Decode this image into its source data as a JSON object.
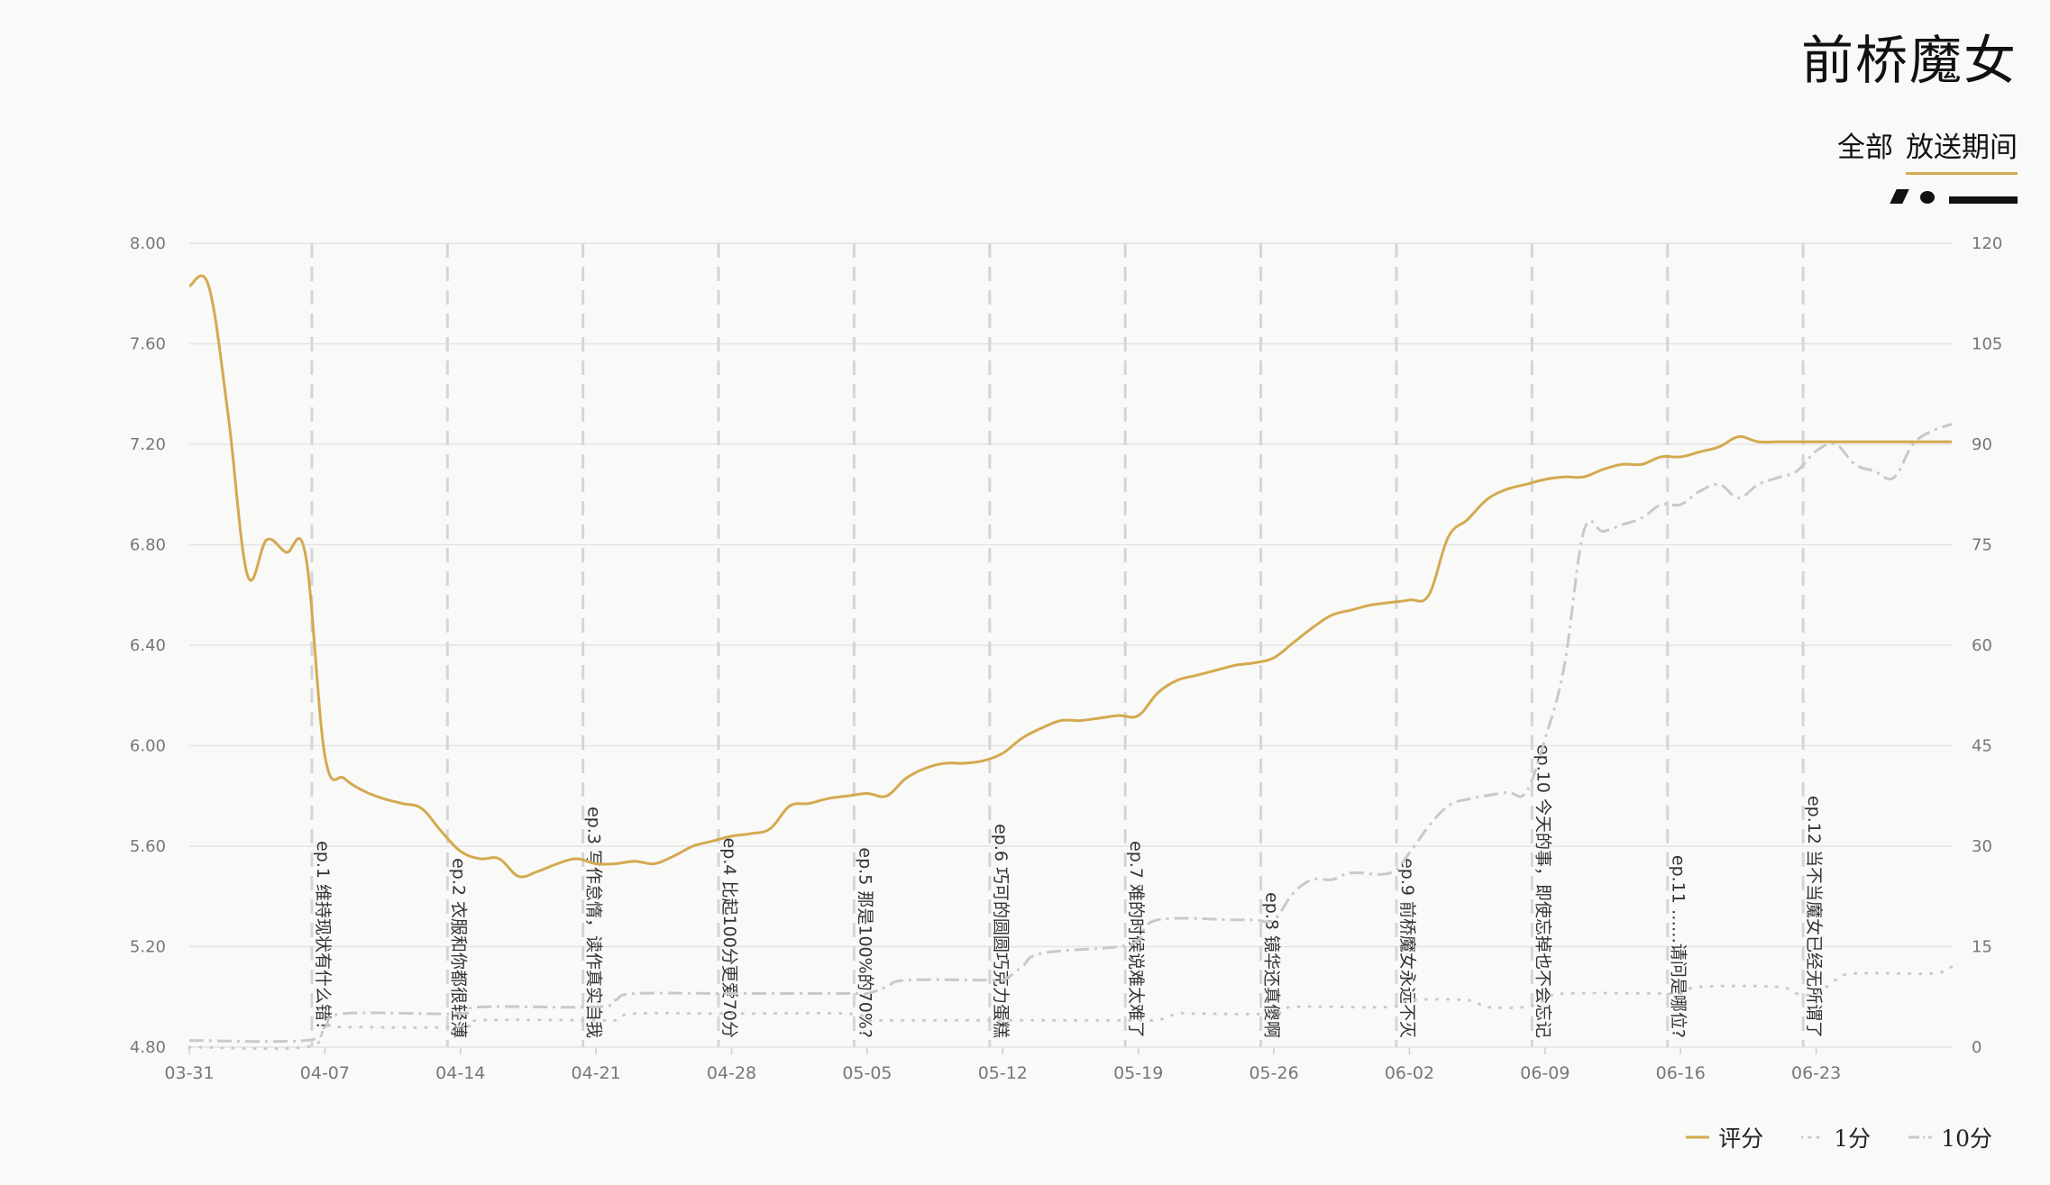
{
  "header": {
    "title": "前桥魔女",
    "tabs": [
      {
        "label": "全部",
        "active": false
      },
      {
        "label": "放送期间",
        "active": true
      }
    ]
  },
  "colors": {
    "score": "#d4a94f",
    "one": "#c9c9c9",
    "ten": "#c9c9c9",
    "grid": "#e4e4e4",
    "episode_line": "#d5d5d5",
    "axis_text": "#777777"
  },
  "legend": [
    {
      "label": "评分",
      "style": "solid"
    },
    {
      "label": "1分",
      "style": "dotted"
    },
    {
      "label": "10分",
      "style": "dashdot"
    }
  ],
  "chart_data": {
    "type": "line",
    "x_ticks": [
      "03-31",
      "04-07",
      "04-14",
      "04-21",
      "04-28",
      "05-05",
      "05-12",
      "05-19",
      "05-26",
      "06-02",
      "06-09",
      "06-16",
      "06-23"
    ],
    "x_range": [
      "03-31",
      "06-30"
    ],
    "y_left": {
      "range": [
        4.8,
        8.0
      ],
      "ticks": [
        "8.00",
        "7.60",
        "7.20",
        "6.80",
        "6.40",
        "6.00",
        "5.60",
        "5.20",
        "4.80"
      ]
    },
    "y_right": {
      "range": [
        0,
        120
      ],
      "ticks": [
        "120",
        "105",
        "90",
        "75",
        "60",
        "45",
        "30",
        "15",
        "0"
      ]
    },
    "episodes": [
      {
        "date": "04-06",
        "label": "ep.1 维持现状有什么错！"
      },
      {
        "date": "04-13",
        "label": "ep.2 衣服和你都很轻薄"
      },
      {
        "date": "04-20",
        "label": "ep.3 写作怠惰，读作真实自我"
      },
      {
        "date": "04-27",
        "label": "ep.4 比起100分更爱70分"
      },
      {
        "date": "05-04",
        "label": "ep.5 那是100%的70%?"
      },
      {
        "date": "05-11",
        "label": "ep.6 巧可的圆圆巧克力蛋糕"
      },
      {
        "date": "05-18",
        "label": "ep.7 难的时候说难太难了"
      },
      {
        "date": "05-25",
        "label": "ep.8 镜华还真傻啊"
      },
      {
        "date": "06-01",
        "label": "ep.9 前桥魔女永远不灭"
      },
      {
        "date": "06-08",
        "label": "ep.10 今天的事，即使忘掉也不会忘记"
      },
      {
        "date": "06-15",
        "label": "ep.11 ……请问是哪位?"
      },
      {
        "date": "06-22",
        "label": "ep.12 当不当魔女已经无所谓了"
      }
    ],
    "series": [
      {
        "name": "评分",
        "axis": "left",
        "style": "solid",
        "x": [
          "03-31",
          "04-01",
          "04-02",
          "04-03",
          "04-04",
          "04-05",
          "04-06",
          "04-07",
          "04-08",
          "04-09",
          "04-10",
          "04-11",
          "04-12",
          "04-13",
          "04-14",
          "04-15",
          "04-16",
          "04-17",
          "04-18",
          "04-19",
          "04-20",
          "04-21",
          "04-22",
          "04-23",
          "04-24",
          "04-25",
          "04-26",
          "04-27",
          "04-28",
          "04-29",
          "04-30",
          "05-01",
          "05-02",
          "05-03",
          "05-04",
          "05-05",
          "05-06",
          "05-07",
          "05-08",
          "05-09",
          "05-10",
          "05-11",
          "05-12",
          "05-13",
          "05-14",
          "05-15",
          "05-16",
          "05-17",
          "05-18",
          "05-19",
          "05-20",
          "05-21",
          "05-22",
          "05-23",
          "05-24",
          "05-25",
          "05-26",
          "05-27",
          "05-28",
          "05-29",
          "05-30",
          "05-31",
          "06-01",
          "06-02",
          "06-03",
          "06-04",
          "06-05",
          "06-06",
          "06-07",
          "06-08",
          "06-09",
          "06-10",
          "06-11",
          "06-12",
          "06-13",
          "06-14",
          "06-15",
          "06-16",
          "06-17",
          "06-18",
          "06-19",
          "06-20",
          "06-21",
          "06-22",
          "06-23",
          "06-24",
          "06-25",
          "06-26",
          "06-27",
          "06-28",
          "06-29",
          "06-30"
        ],
        "y": [
          7.83,
          7.83,
          7.32,
          6.68,
          6.82,
          6.77,
          6.76,
          5.96,
          5.87,
          5.82,
          5.79,
          5.77,
          5.75,
          5.66,
          5.58,
          5.55,
          5.55,
          5.48,
          5.5,
          5.53,
          5.55,
          5.53,
          5.53,
          5.54,
          5.53,
          5.56,
          5.6,
          5.62,
          5.64,
          5.65,
          5.67,
          5.76,
          5.77,
          5.79,
          5.8,
          5.81,
          5.8,
          5.87,
          5.91,
          5.93,
          5.93,
          5.94,
          5.97,
          6.03,
          6.07,
          6.1,
          6.1,
          6.11,
          6.12,
          6.12,
          6.21,
          6.26,
          6.28,
          6.3,
          6.32,
          6.33,
          6.35,
          6.41,
          6.47,
          6.52,
          6.54,
          6.56,
          6.57,
          6.58,
          6.6,
          6.83,
          6.9,
          6.98,
          7.02,
          7.04,
          7.06,
          7.07,
          7.07,
          7.1,
          7.12,
          7.12,
          7.15,
          7.15,
          7.17,
          7.19,
          7.23,
          7.21,
          7.21,
          7.21,
          7.21,
          7.21,
          7.21,
          7.21,
          7.21,
          7.21,
          7.21,
          7.21
        ]
      },
      {
        "name": "1分",
        "axis": "right",
        "style": "dotted",
        "x": [
          "03-31",
          "04-06",
          "04-07",
          "04-08",
          "04-14",
          "04-15",
          "04-21",
          "04-22",
          "04-23",
          "04-28",
          "05-04",
          "05-05",
          "05-06",
          "05-07",
          "05-13",
          "05-19",
          "05-20",
          "05-21",
          "05-22",
          "05-26",
          "05-27",
          "06-01",
          "06-02",
          "06-05",
          "06-06",
          "06-08",
          "06-09",
          "06-10",
          "06-15",
          "06-16",
          "06-17",
          "06-21",
          "06-22",
          "06-23",
          "06-24",
          "06-25",
          "06-29",
          "06-30"
        ],
        "y": [
          0,
          0,
          3,
          3,
          3,
          4,
          4,
          4,
          5,
          5,
          5,
          4,
          4,
          4,
          4,
          4,
          4,
          5,
          5,
          5,
          6,
          6,
          7,
          7,
          6,
          6,
          7,
          8,
          8,
          8,
          9,
          9,
          8,
          8,
          10,
          11,
          11,
          12
        ]
      },
      {
        "name": "10分",
        "axis": "right",
        "style": "dashdot",
        "x": [
          "03-31",
          "04-06",
          "04-07",
          "04-08",
          "04-14",
          "04-15",
          "04-21",
          "04-22",
          "04-23",
          "04-28",
          "05-04",
          "05-05",
          "05-06",
          "05-07",
          "05-11",
          "05-12",
          "05-13",
          "05-14",
          "05-18",
          "05-19",
          "05-20",
          "05-24",
          "05-25",
          "05-26",
          "05-27",
          "05-28",
          "05-29",
          "05-30",
          "06-01",
          "06-02",
          "06-03",
          "06-04",
          "06-05",
          "06-07",
          "06-08",
          "06-09",
          "06-10",
          "06-11",
          "06-12",
          "06-13",
          "06-14",
          "06-15",
          "06-16",
          "06-17",
          "06-18",
          "06-19",
          "06-20",
          "06-21",
          "06-22",
          "06-23",
          "06-24",
          "06-25",
          "06-26",
          "06-27",
          "06-28",
          "06-29",
          "06-30"
        ],
        "y": [
          1,
          1,
          3,
          5,
          5,
          6,
          6,
          7,
          8,
          8,
          8,
          8,
          9,
          10,
          10,
          10,
          12,
          14,
          15,
          16,
          19,
          19,
          19,
          19,
          23,
          25,
          25,
          26,
          26,
          29,
          33,
          36,
          37,
          38,
          38,
          46,
          57,
          77,
          77,
          78,
          79,
          81,
          81,
          83,
          84,
          82,
          84,
          85,
          86,
          89,
          90,
          87,
          86,
          85,
          90,
          92,
          93
        ]
      }
    ]
  }
}
